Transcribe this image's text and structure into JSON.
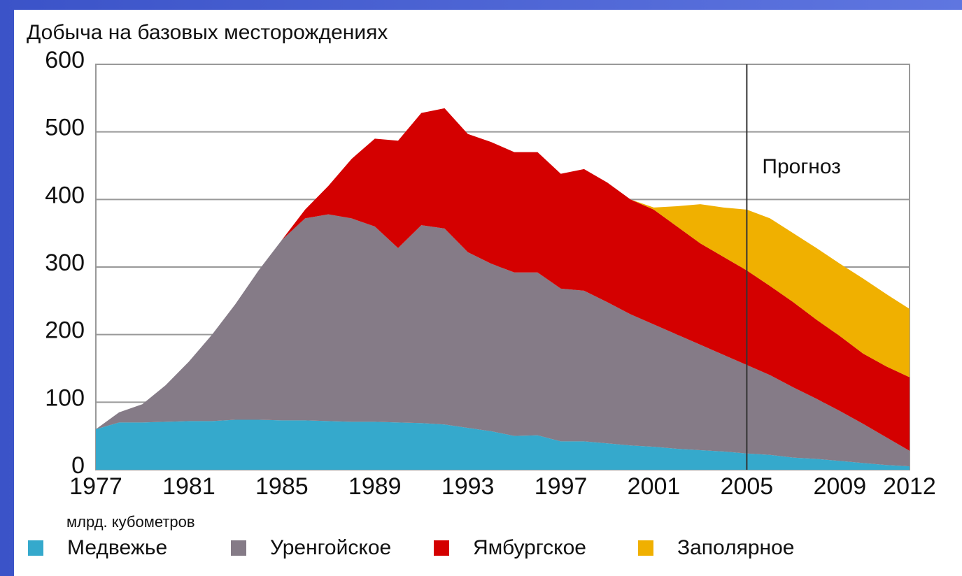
{
  "chart_data": {
    "type": "stacked_area",
    "title": "Добыча на базовых месторождениях",
    "ylabel": "млрд. кубометров",
    "x": [
      1977,
      1978,
      1979,
      1980,
      1981,
      1982,
      1983,
      1984,
      1985,
      1986,
      1987,
      1988,
      1989,
      1990,
      1991,
      1992,
      1993,
      1994,
      1995,
      1996,
      1997,
      1998,
      1999,
      2000,
      2001,
      2002,
      2003,
      2004,
      2005,
      2006,
      2007,
      2008,
      2009,
      2010,
      2011,
      2012
    ],
    "series": [
      {
        "name": "Медвежье",
        "color": "#35a9cc",
        "values": [
          60,
          70,
          70,
          71,
          72,
          72,
          74,
          74,
          73,
          73,
          72,
          71,
          71,
          70,
          69,
          67,
          62,
          57,
          50,
          51,
          42,
          42,
          39,
          36,
          34,
          31,
          29,
          27,
          24,
          22,
          18,
          16,
          13,
          10,
          7,
          5
        ]
      },
      {
        "name": "Уренгойское",
        "color": "#857b87",
        "values": [
          0,
          15,
          27,
          54,
          88,
          128,
          171,
          221,
          267,
          299,
          306,
          301,
          289,
          258,
          293,
          290,
          260,
          248,
          242,
          241,
          226,
          223,
          209,
          194,
          181,
          169,
          156,
          143,
          131,
          118,
          104,
          89,
          74,
          58,
          41,
          23
        ]
      },
      {
        "name": "Ямбургское",
        "color": "#d40000",
        "values": [
          0,
          0,
          0,
          0,
          0,
          0,
          0,
          0,
          0,
          13,
          42,
          88,
          130,
          159,
          166,
          178,
          175,
          180,
          178,
          178,
          170,
          180,
          177,
          170,
          170,
          160,
          150,
          145,
          140,
          132,
          126,
          117,
          111,
          104,
          105,
          109
        ]
      },
      {
        "name": "Заполярное",
        "color": "#f0b000",
        "values": [
          0,
          0,
          0,
          0,
          0,
          0,
          0,
          0,
          0,
          0,
          0,
          0,
          0,
          0,
          0,
          0,
          0,
          0,
          0,
          0,
          0,
          0,
          0,
          0,
          3,
          30,
          58,
          73,
          90,
          100,
          102,
          106,
          107,
          111,
          107,
          101
        ]
      }
    ],
    "xlim": [
      1977,
      2012
    ],
    "xticks": [
      1977,
      1981,
      1985,
      1989,
      1993,
      1997,
      2001,
      2005,
      2009,
      2012
    ],
    "ylim": [
      0,
      600
    ],
    "yticks": [
      0,
      100,
      200,
      300,
      400,
      500,
      600
    ],
    "grid": true,
    "annotations": [
      {
        "text": "Прогноз",
        "x": 2005
      }
    ]
  }
}
